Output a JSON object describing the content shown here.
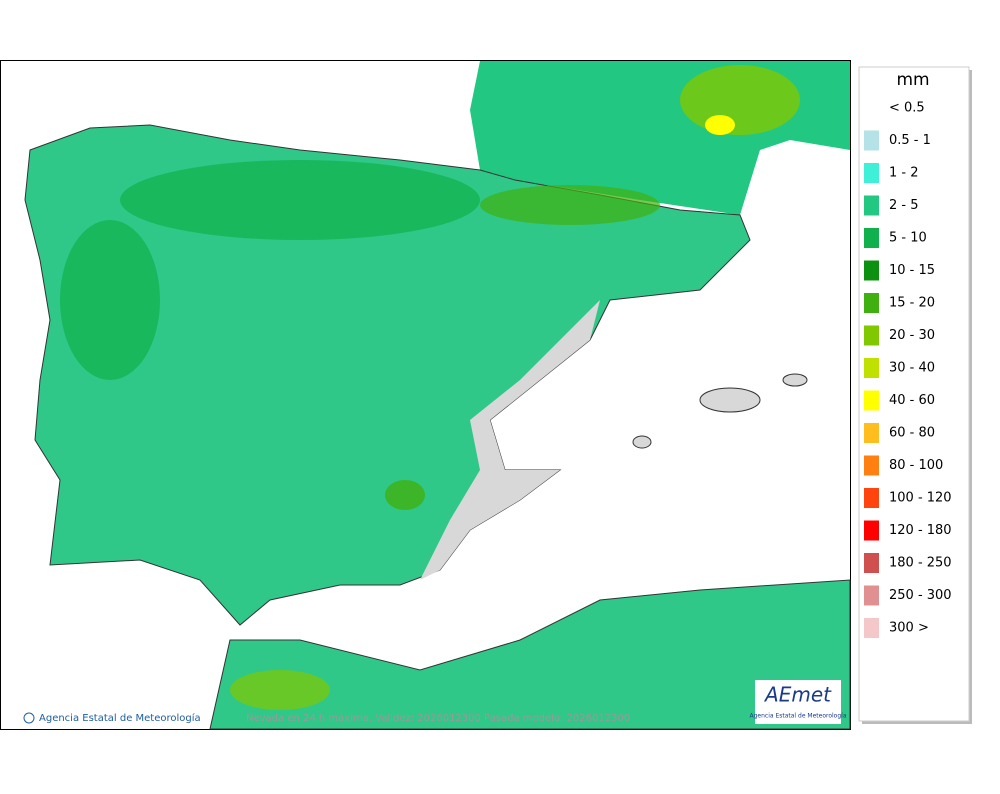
{
  "legend": {
    "unit": "mm",
    "items": [
      {
        "label": "< 0.5",
        "color": null
      },
      {
        "label": "0.5 - 1",
        "color": "#b4e2e6"
      },
      {
        "label": "1 - 2",
        "color": "#3ef0d8"
      },
      {
        "label": "2 - 5",
        "color": "#22c882"
      },
      {
        "label": "5 - 10",
        "color": "#10b04c"
      },
      {
        "label": "10 - 15",
        "color": "#0c9010"
      },
      {
        "label": "15 - 20",
        "color": "#40b010"
      },
      {
        "label": "20 - 30",
        "color": "#80c800"
      },
      {
        "label": "30 - 40",
        "color": "#c0e000"
      },
      {
        "label": "40 - 60",
        "color": "#ffff00"
      },
      {
        "label": "60 - 80",
        "color": "#ffbe1e"
      },
      {
        "label": "80 - 100",
        "color": "#ff8010"
      },
      {
        "label": "100 - 120",
        "color": "#ff4410"
      },
      {
        "label": "120 - 180",
        "color": "#ff0000"
      },
      {
        "label": "180 - 250",
        "color": "#d05050"
      },
      {
        "label": "250 - 300",
        "color": "#e09090"
      },
      {
        "label": "300 >",
        "color": "#f4c8c8"
      }
    ]
  },
  "footer": {
    "credit": "Agencia Estatal de Meteorología",
    "caption": "Nevada en 24 h máxima. Validez: 2026012300 Pasada modelo: 2026012300"
  },
  "logo": {
    "name": "AEmet",
    "subtitle": "Agencia Estatal de Meteorología"
  }
}
